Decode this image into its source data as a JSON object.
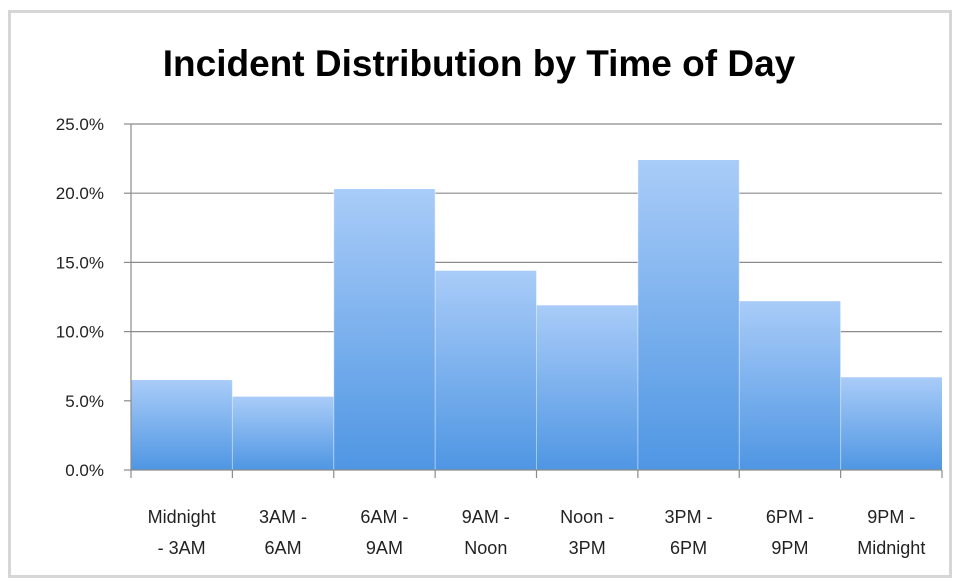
{
  "chart_data": {
    "type": "bar",
    "title": "Incident Distribution by Time of Day",
    "categories": [
      [
        "Midnight",
        "- 3AM"
      ],
      [
        "3AM -",
        "6AM"
      ],
      [
        "6AM -",
        "9AM"
      ],
      [
        "9AM -",
        "Noon"
      ],
      [
        "Noon -",
        "3PM"
      ],
      [
        "3PM -",
        "6PM"
      ],
      [
        "6PM -",
        "9PM"
      ],
      [
        "9PM -",
        "Midnight"
      ]
    ],
    "values": [
      6.5,
      5.3,
      20.3,
      14.4,
      11.9,
      22.4,
      12.2,
      6.7
    ],
    "ylim": [
      0,
      25
    ],
    "yticks": [
      0,
      5,
      10,
      15,
      20,
      25
    ],
    "ytick_labels": [
      "0.0%",
      "5.0%",
      "10.0%",
      "15.0%",
      "20.0%",
      "25.0%"
    ],
    "xlabel": "",
    "ylabel": "",
    "grid": true,
    "bar_color_top": "#a9ccf8",
    "bar_color_bottom": "#4f96e3"
  }
}
